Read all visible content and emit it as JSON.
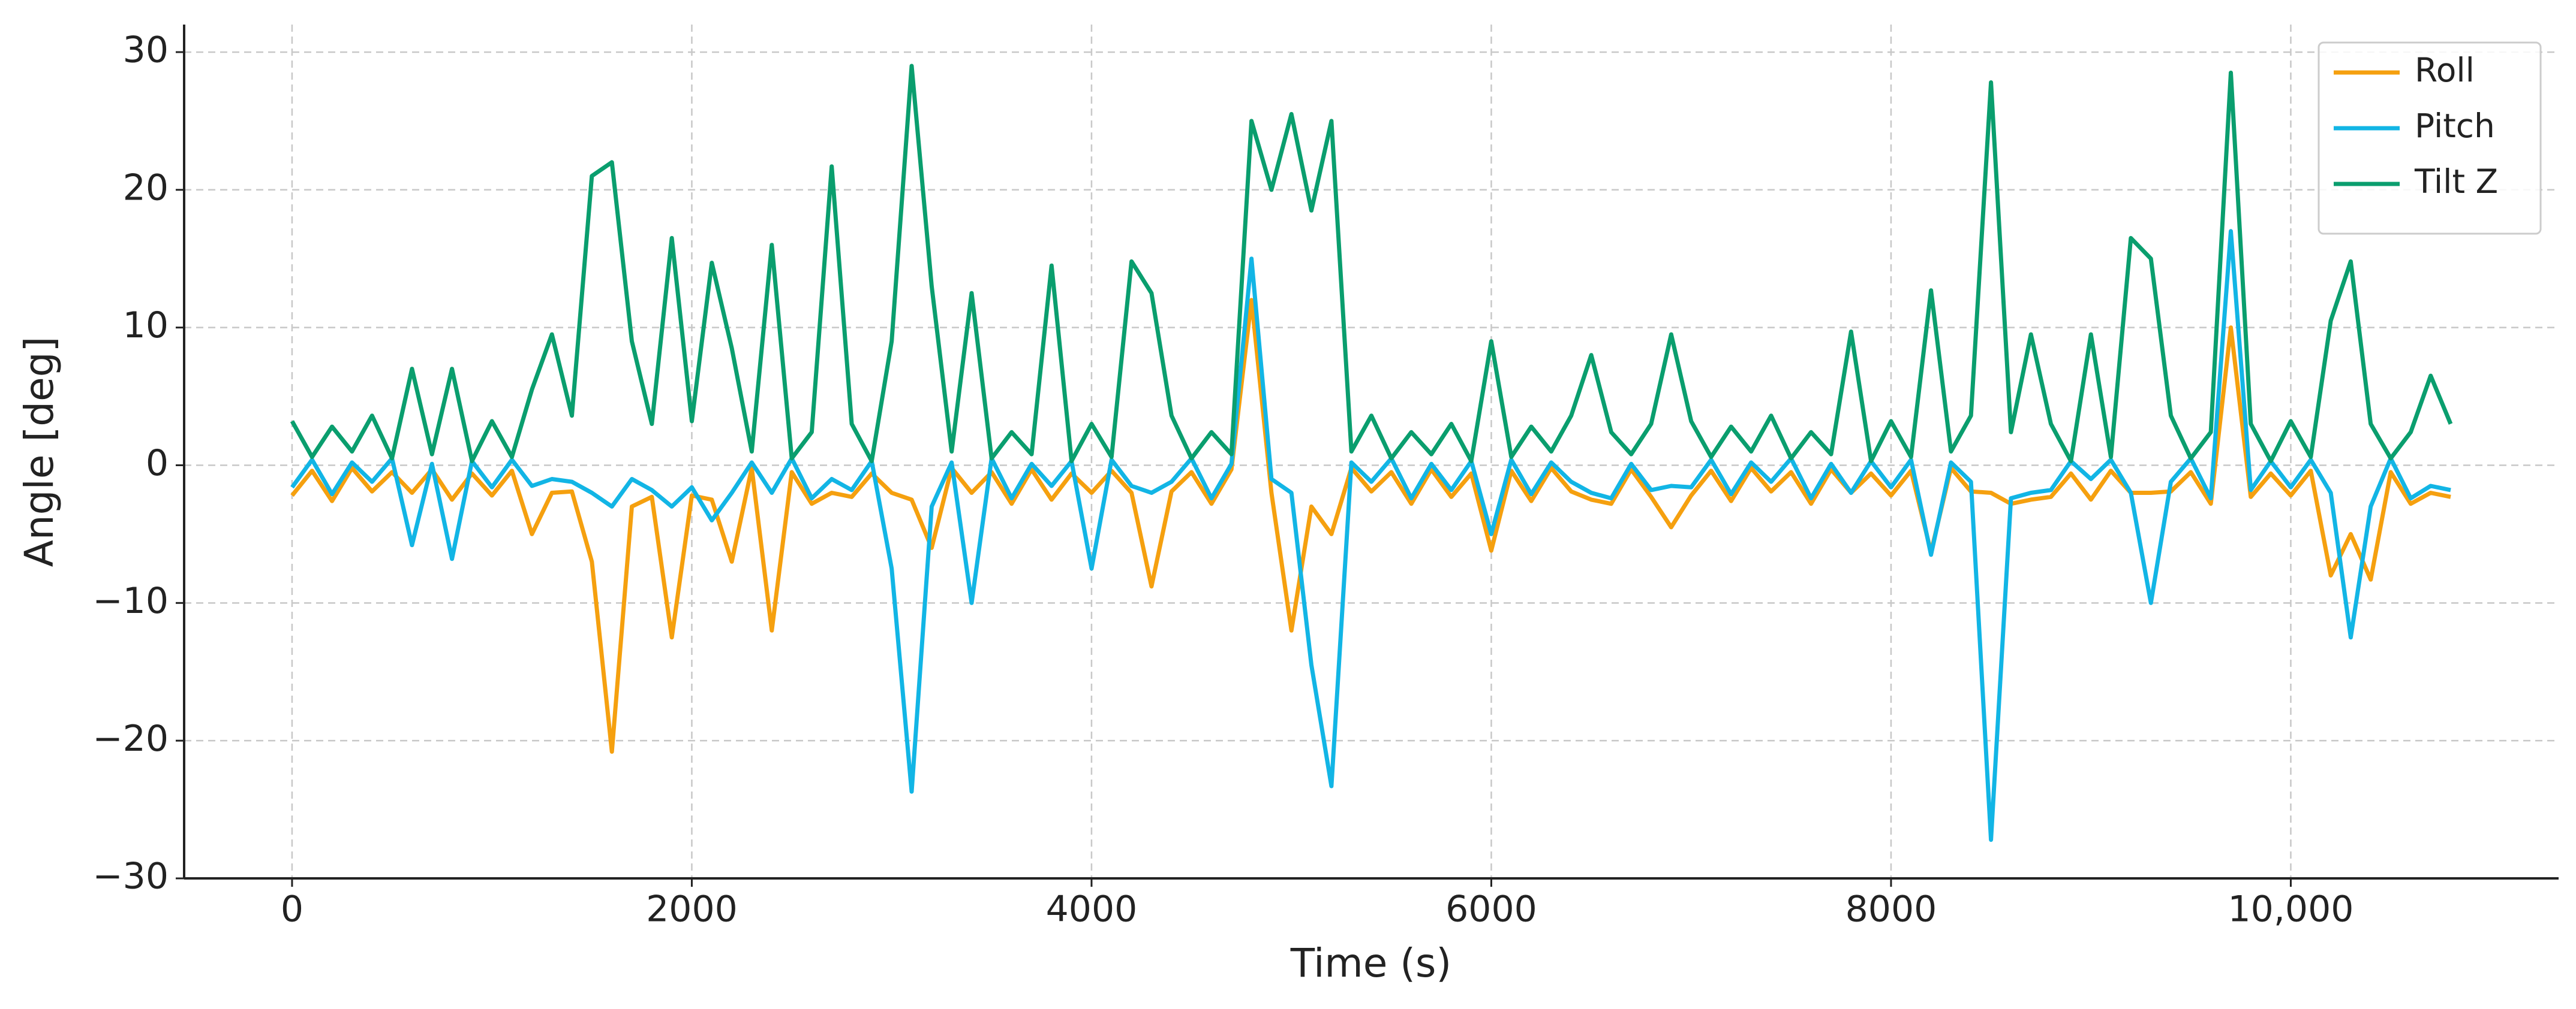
{
  "chart_data": {
    "type": "line",
    "xlabel": "Time (s)",
    "ylabel": "Angle [deg]",
    "x": [
      0,
      100,
      200,
      300,
      400,
      500,
      600,
      700,
      800,
      900,
      1000,
      1100,
      1200,
      1300,
      1400,
      1500,
      1600,
      1700,
      1800,
      1900,
      2000,
      2100,
      2200,
      2300,
      2400,
      2500,
      2600,
      2700,
      2800,
      2900,
      3000,
      3100,
      3200,
      3300,
      3400,
      3500,
      3600,
      3700,
      3800,
      3900,
      4000,
      4100,
      4200,
      4300,
      4400,
      4500,
      4600,
      4700,
      4800,
      4900,
      5000,
      5100,
      5200,
      5300,
      5400,
      5500,
      5600,
      5700,
      5800,
      5900,
      6000,
      6100,
      6200,
      6300,
      6400,
      6500,
      6600,
      6700,
      6800,
      6900,
      7000,
      7100,
      7200,
      7300,
      7400,
      7500,
      7600,
      7700,
      7800,
      7900,
      8000,
      8100,
      8200,
      8300,
      8400,
      8500,
      8600,
      8700,
      8800,
      8900,
      9000,
      9100,
      9200,
      9300,
      9400,
      9500,
      9600,
      9700,
      9800,
      9900,
      10000,
      10100,
      10200,
      10300,
      10400,
      10500,
      10600,
      10700,
      10800
    ],
    "series": [
      {
        "name": "Roll",
        "color": "#f5a00f",
        "values": [
          -2.2,
          -0.4,
          -2.6,
          -0.2,
          -1.9,
          -0.5,
          -2,
          -0.3,
          -2.5,
          -0.6,
          -2.2,
          -0.4,
          -5,
          -2,
          -1.9,
          -7,
          -20.8,
          -3,
          -2.3,
          -12.5,
          -2.2,
          -2.5,
          -7,
          -0.2,
          -12,
          -0.5,
          -2.8,
          -2,
          -2.3,
          -0.6,
          -2,
          -2.5,
          -6,
          -0.2,
          -2,
          -0.5,
          -2.8,
          -0.3,
          -2.5,
          -0.6,
          -2,
          -0.4,
          -2,
          -8.8,
          -1.9,
          -0.5,
          -2.8,
          -0.3,
          12,
          -2,
          -12,
          -3,
          -5,
          -0.2,
          -1.9,
          -0.5,
          -2.8,
          -0.3,
          -2.3,
          -0.6,
          -6.2,
          -0.4,
          -2.6,
          -0.2,
          -1.9,
          -2.5,
          -2.8,
          -0.3,
          -2.3,
          -4.5,
          -2.2,
          -0.4,
          -2.6,
          -0.2,
          -1.9,
          -0.5,
          -2.8,
          -0.3,
          -2,
          -0.6,
          -2.2,
          -0.4,
          -6.3,
          -0.2,
          -1.9,
          -2,
          -2.8,
          -2.5,
          -2.3,
          -0.6,
          -2.5,
          -0.4,
          -2,
          -2,
          -1.9,
          -0.5,
          -2.8,
          10,
          -2.3,
          -0.6,
          -2.2,
          -0.4,
          -8,
          -5,
          -8.3,
          -0.5,
          -2.8,
          -2,
          -2.3
        ]
      },
      {
        "name": "Pitch",
        "color": "#12b5e5",
        "values": [
          -1.6,
          0.4,
          -2.1,
          0.2,
          -1.2,
          0.5,
          -5.8,
          0.1,
          -6.8,
          0.3,
          -1.6,
          0.4,
          -1.5,
          -1,
          -1.2,
          -2,
          -3,
          -1,
          -1.8,
          -3,
          -1.6,
          -4,
          -2,
          0.2,
          -2,
          0.5,
          -2.4,
          -1,
          -1.8,
          0.3,
          -7.5,
          -23.7,
          -3,
          0.2,
          -10,
          0.5,
          -2.4,
          0.1,
          -1.5,
          0.3,
          -7.5,
          0.4,
          -1.5,
          -2,
          -1.2,
          0.5,
          -2.4,
          0.1,
          15,
          -1,
          -2,
          -14.5,
          -23.3,
          0.2,
          -1.2,
          0.5,
          -2.4,
          0.1,
          -1.8,
          0.3,
          -5,
          0.4,
          -2.1,
          0.2,
          -1.2,
          -2,
          -2.4,
          0.1,
          -1.8,
          -1.5,
          -1.6,
          0.4,
          -2.1,
          0.2,
          -1.2,
          0.5,
          -2.4,
          0.1,
          -2,
          0.3,
          -1.6,
          0.4,
          -6.5,
          0.2,
          -1.2,
          -27.2,
          -2.4,
          -2,
          -1.8,
          0.3,
          -1,
          0.4,
          -2,
          -10,
          -1.2,
          0.5,
          -2.4,
          17,
          -1.8,
          0.3,
          -1.6,
          0.4,
          -2,
          -12.5,
          -3,
          0.5,
          -2.4,
          -1.5,
          -1.8
        ]
      },
      {
        "name": "Tilt Z",
        "color": "#0a9e6e",
        "values": [
          3.2,
          0.6,
          2.8,
          1.0,
          3.6,
          0.5,
          7,
          0.8,
          7,
          0.3,
          3.2,
          0.6,
          5.5,
          9.5,
          3.6,
          21,
          22,
          9,
          3.0,
          16.5,
          3.2,
          14.7,
          8.5,
          1.0,
          16,
          0.5,
          2.4,
          21.7,
          3.0,
          0.3,
          9,
          29,
          13,
          1.0,
          12.5,
          0.5,
          2.4,
          0.8,
          14.5,
          0.3,
          3,
          0.6,
          14.8,
          12.5,
          3.6,
          0.5,
          2.4,
          0.8,
          25,
          20,
          25.5,
          18.5,
          25,
          1.0,
          3.6,
          0.5,
          2.4,
          0.8,
          3.0,
          0.3,
          9,
          0.6,
          2.8,
          1.0,
          3.6,
          8,
          2.4,
          0.8,
          3.0,
          9.5,
          3.2,
          0.6,
          2.8,
          1.0,
          3.6,
          0.5,
          2.4,
          0.8,
          9.7,
          0.3,
          3.2,
          0.6,
          12.7,
          1.0,
          3.6,
          27.8,
          2.4,
          9.5,
          3.0,
          0.3,
          9.5,
          0.6,
          16.5,
          15,
          3.6,
          0.5,
          2.4,
          28.5,
          3.0,
          0.3,
          3.2,
          0.6,
          10.5,
          14.8,
          3,
          0.5,
          2.4,
          6.5,
          3.0
        ]
      }
    ],
    "xlim": [
      -540,
      11340
    ],
    "xticks": [
      0,
      2000,
      4000,
      6000,
      8000,
      {
        "value": 10000,
        "label": "10,000"
      }
    ],
    "ylim": [
      -30,
      32
    ],
    "yticks": [
      {
        "value": -30,
        "label": "−30"
      },
      {
        "value": -20,
        "label": "−20"
      },
      {
        "value": -10,
        "label": "−10"
      },
      0,
      10,
      20,
      30
    ],
    "grid": true,
    "legend": "upper right"
  }
}
